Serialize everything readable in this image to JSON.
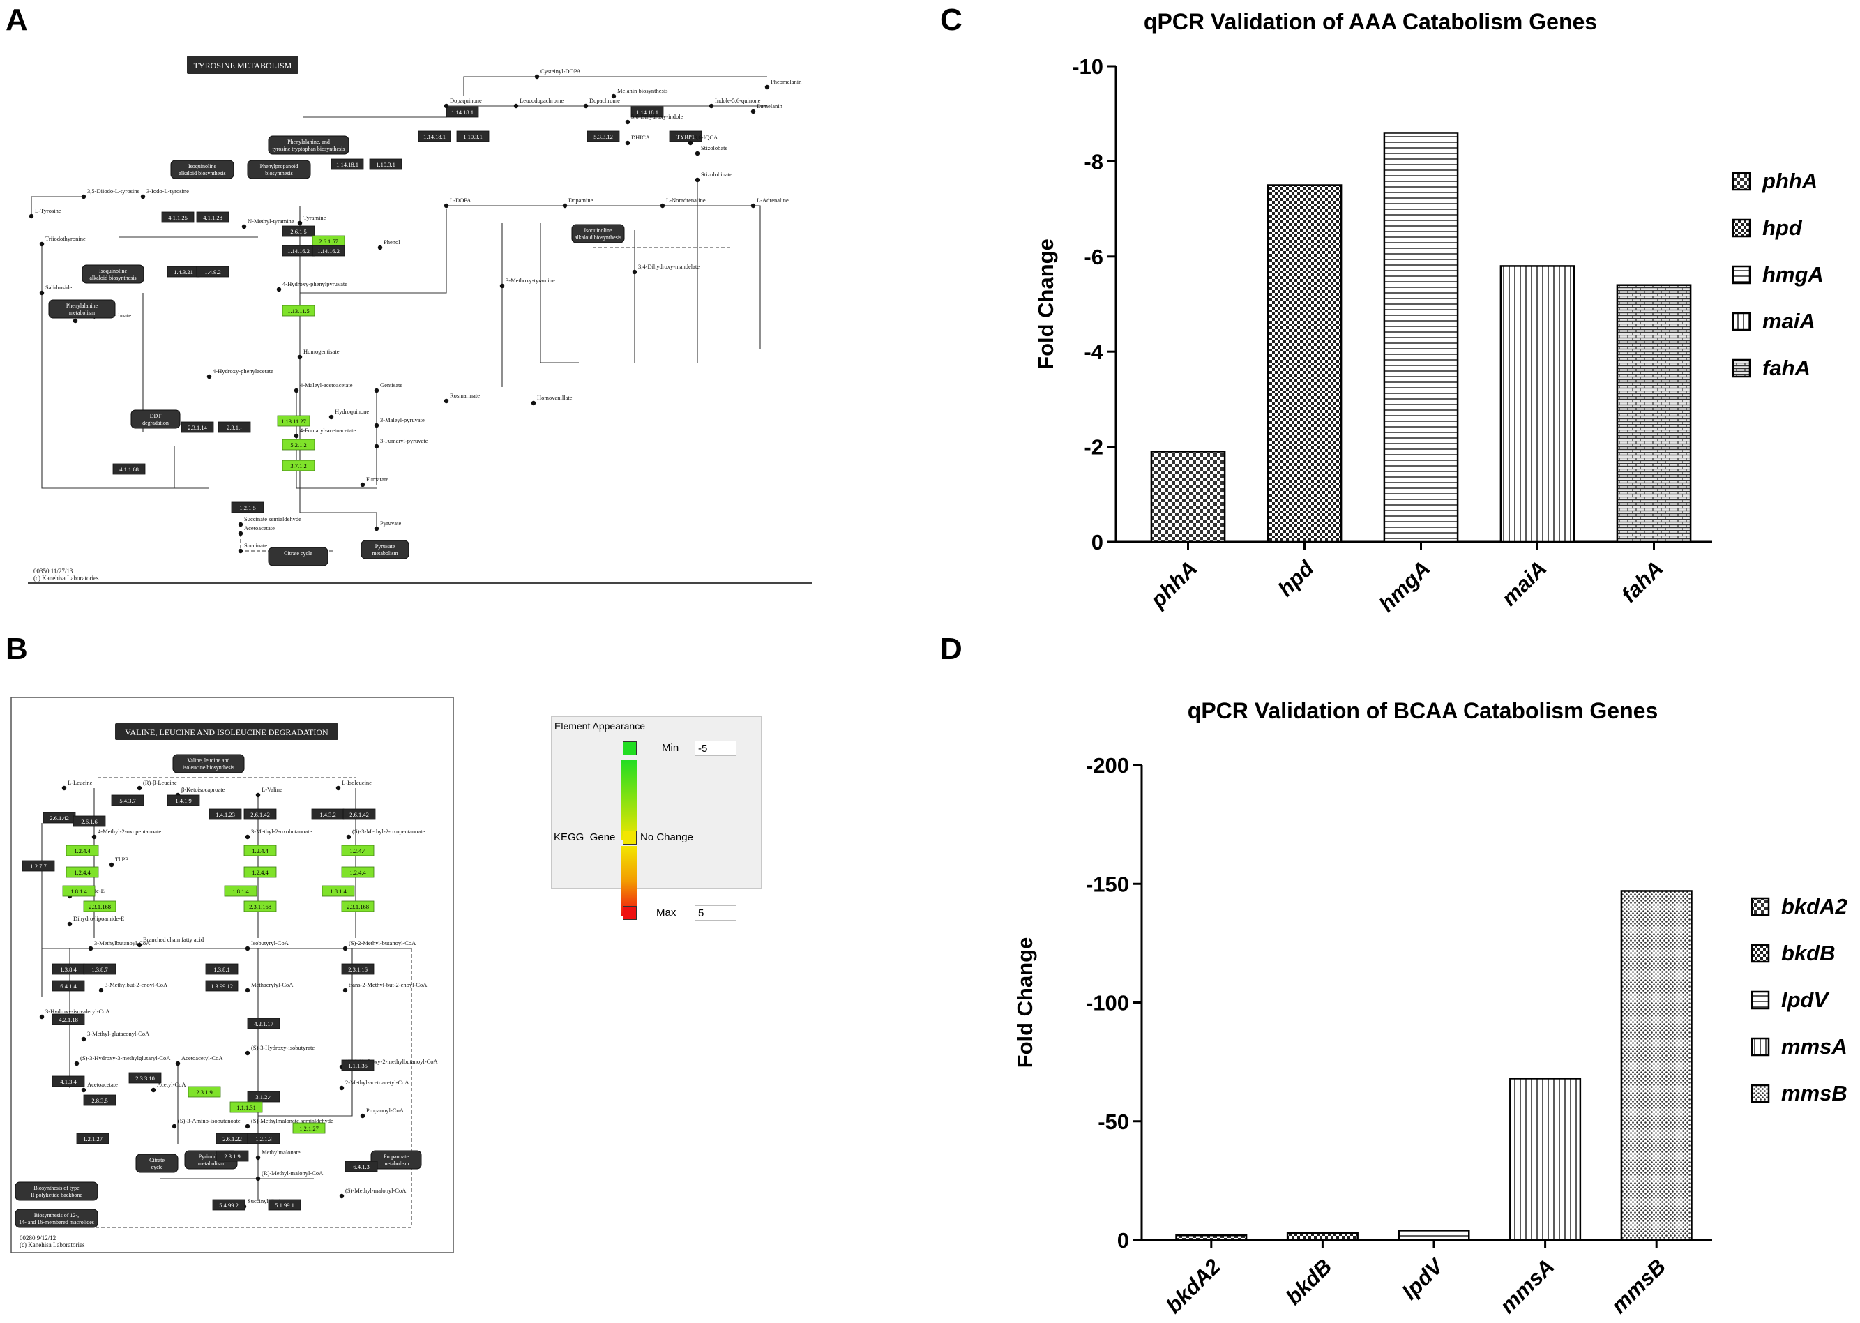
{
  "panels": {
    "a": "A",
    "b": "B",
    "c": "C",
    "d": "D"
  },
  "map_a": {
    "title": "TYROSINE METABOLISM",
    "footer": "00350 11/27/13",
    "footer2": "(c) Kanehisa Laboratories",
    "boxes": [
      "1.14.18.1",
      "1.10.3.1",
      "1.14.18.1",
      "1.10.3.1",
      "1.14.18.1",
      "5.3.3.12",
      "1.14.18.1",
      "TYRP1",
      "4.1.1.25",
      "4.1.1.28",
      "2.6.1.5",
      "2.6.1.57",
      "1.14.16.2",
      "1.14.16.2",
      "1.4.3.21",
      "1.4.9.2",
      "1.13.11.5",
      "1.13.11.27",
      "3.7.1.2",
      "5.2.1.2",
      "1.2.1.5",
      "4.1.1.68",
      "2.3.1.14",
      "2.3.1.-"
    ],
    "green_boxes": [
      "2.6.1.57",
      "1.13.11.27",
      "1.13.11.5",
      "5.2.1.2",
      "3.7.1.2"
    ],
    "pathways": [
      "Phenylalanine, tyrosine and tryptophan biosynthesis",
      "Isoquinoline alkaloid biosynthesis",
      "Phenylpropanoid biosynthesis",
      "Isoquinoline alkaloid biosynthesis",
      "Phenylalanine metabolism",
      "DDT degradation",
      "Citrate cycle",
      "Pyruvate metabolism",
      "Isoquinoline alkaloid biosynthesis"
    ],
    "compounds": [
      "Cysteinyl-DOPA",
      "Pheomelanin",
      "Melanin biosynthesis",
      "Dopaquinone",
      "Leucodopachrome",
      "Dopachrome",
      "Indole-5,6-quinone",
      "Eumelanin",
      "5,6-Dihydroxy-indole",
      "DHICA",
      "3,6-IQCA",
      "Stizolobate",
      "Stizolobinate",
      "L-Tyrosine",
      "3,5-Diiodo-L-tyrosine",
      "3-Iodo-L-tyrosine",
      "Triiodothyronine",
      "Tyramine",
      "N-Methyl-tyramine",
      "Phenol",
      "L-DOPA",
      "Dopamine",
      "L-Noradrenaline",
      "L-Adrenaline",
      "Salidroside",
      "4-Hydroxy-phenylpyruvate",
      "Homogentisate",
      "4-Maleyl-acetoacetate",
      "4-Fumaryl-acetoacetate",
      "Fumarate",
      "Acetoacetate",
      "Succinate",
      "Pyruvate",
      "Gentisate",
      "3-Maleyl-pyruvate",
      "3-Fumaryl-pyruvate",
      "Hydroquinone",
      "Homovanillate",
      "3-Methoxy-tyramine",
      "3,4-Dihydroxy-mandelate",
      "Rosmarinate",
      "Homoprotocatechuate",
      "Succinate semialdehyde",
      "4-Hydroxy-phenylacetate"
    ]
  },
  "map_b": {
    "title": "VALINE, LEUCINE AND ISOLEUCINE DEGRADATION",
    "footer": "00280 9/12/12",
    "footer2": "(c) Kanehisa Laboratories",
    "top_pathway": "Valine, leucine and isoleucine biosynthesis",
    "top_compounds": [
      "L-Leucine",
      "(R)-β-Leucine",
      "β-Ketoisocaproate",
      "L-Valine",
      "L-Isoleucine"
    ],
    "mid_compounds": [
      "4-Methyl-2-oxopentanoate",
      "3-Methyl-2-oxobutanoate",
      "(S)-3-Methyl-2-oxopentanoate",
      "ThPP",
      "Lipoamide-E",
      "Dihydro-lipoamide-E",
      "Branched chain fatty acid",
      "3-Methylbutanoyl-CoA",
      "Isobutyryl-CoA",
      "(S)-2-Methyl-butanoyl-CoA",
      "3-Methylbut-2-enoyl-CoA",
      "Methacrylyl-CoA",
      "trans-2-Methyl-but-2-enoyl-CoA",
      "3-Hydroxy-isovaleryl-CoA",
      "3-Methyl-glutaconyl-CoA",
      "(S)-3-Hydroxy-3-methylglutaryl-CoA",
      "Acetoacetyl-CoA",
      "Acetyl-CoA",
      "Acetoacetate",
      "(S)-3-Hydroxy-isobutyrate",
      "(S)-3-Hydroxy-2-methylbutanoyl-CoA",
      "2-Methyl-acetoacetyl-CoA",
      "Propanoyl-CoA",
      "(S)-Methylmalonate semialdehyde",
      "(S)-3-Amino-isobutanoate",
      "Methylmalonate",
      "(R)-Methyl-malonyl-CoA",
      "(S)-Methyl-malonyl-CoA",
      "Succinyl-CoA"
    ],
    "pathways": [
      "Citrate cycle",
      "Pyrimidine metabolism",
      "Propanoate metabolism",
      "Biosynthesis of type II polyketide backbone",
      "Biosynthesis of 12-, 14- and 16-membered macrolides"
    ],
    "boxes": [
      "5.4.3.7",
      "1.4.1.9",
      "2.6.1.42",
      "2.6.1.6",
      "1.4.1.23",
      "2.6.1.42",
      "1.4.3.2",
      "2.6.1.42",
      "1.2.7.7",
      "1.3.8.4",
      "1.3.8.7",
      "6.4.1.4",
      "4.2.1.18",
      "4.1.3.4",
      "2.3.3.10",
      "2.8.3.5",
      "1.3.8.1",
      "1.3.99.12",
      "4.2.1.17",
      "3.1.2.4",
      "2.6.1.22",
      "1.2.1.3",
      "2.3.1.9",
      "1.2.1.27",
      "6.4.1.3",
      "5.1.99.1",
      "5.4.99.2",
      "2.3.1.16",
      "1.1.1.35"
    ],
    "green_boxes": [
      "1.2.4.4",
      "1.2.4.4",
      "1.8.1.4",
      "2.3.1.168",
      "1.2.4.4",
      "1.2.4.4",
      "1.8.1.4",
      "2.3.1.168",
      "1.2.4.4",
      "1.2.4.4",
      "1.8.1.4",
      "2.3.1.168",
      "2.3.1.9",
      "1.1.1.31",
      "1.2.1.27"
    ],
    "legend": {
      "title": "Element Appearance",
      "min_label": "Min",
      "min_value": "-5",
      "mid_label": "No Change",
      "gene_label": "KEGG_Gene",
      "max_label": "Max",
      "max_value": "5",
      "min_color": "#22dd22",
      "mid_color": "#f2e600",
      "max_color": "#ee1111"
    }
  },
  "chart_data": [
    {
      "type": "bar",
      "title": "qPCR Validation of AAA Catabolism Genes",
      "ylabel": "Fold Change",
      "xlabel": "",
      "categories": [
        "phhA",
        "hpd",
        "hmgA",
        "maiA",
        "fahA"
      ],
      "values": [
        -1.9,
        -7.5,
        -8.6,
        -5.8,
        -5.4
      ],
      "ylim": [
        0,
        -10
      ],
      "yticks": [
        "0",
        "-2",
        "-4",
        "-6",
        "-8",
        "-10"
      ],
      "legend": [
        "phhA",
        "hpd",
        "hmgA",
        "maiA",
        "fahA"
      ],
      "legend_position": "right"
    },
    {
      "type": "bar",
      "title": "qPCR Validation of BCAA Catabolism Genes",
      "ylabel": "Fold Change",
      "xlabel": "",
      "categories": [
        "bkdA2",
        "bkdB",
        "lpdV",
        "mmsA",
        "mmsB"
      ],
      "values": [
        -2,
        -3,
        -4,
        -68,
        -147
      ],
      "ylim": [
        0,
        -200
      ],
      "yticks": [
        "0",
        "-50",
        "-100",
        "-150",
        "-200"
      ],
      "legend": [
        "bkdA2",
        "bkdB",
        "lpdV",
        "mmsA",
        "mmsB"
      ],
      "legend_position": "right"
    }
  ]
}
